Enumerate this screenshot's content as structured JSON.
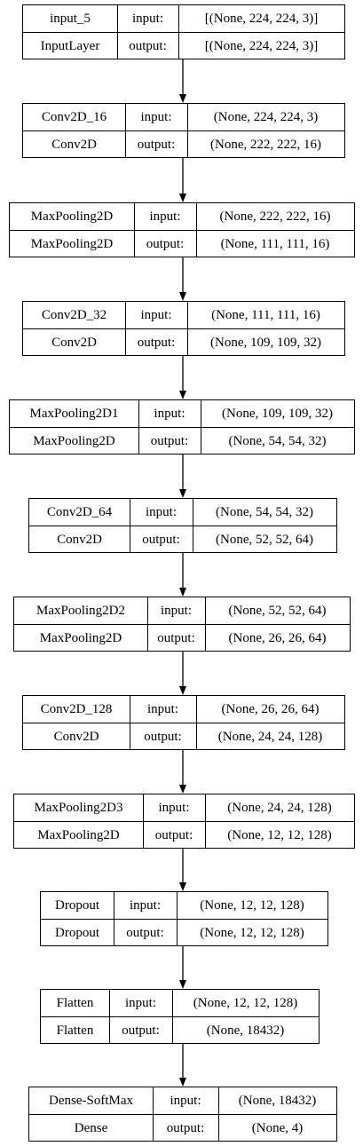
{
  "diagram": {
    "type": "keras-model-plot",
    "layers": [
      {
        "name": "input_5",
        "class": "InputLayer",
        "input_label": "input:",
        "input": "[(None, 224, 224, 3)]",
        "output_label": "output:",
        "output": "[(None, 224, 224, 3)]"
      },
      {
        "name": "Conv2D_16",
        "class": "Conv2D",
        "input_label": "input:",
        "input": "(None, 224, 224, 3)",
        "output_label": "output:",
        "output": "(None, 222, 222, 16)"
      },
      {
        "name": "MaxPooling2D",
        "class": "MaxPooling2D",
        "input_label": "input:",
        "input": "(None, 222, 222, 16)",
        "output_label": "output:",
        "output": "(None, 111, 111, 16)"
      },
      {
        "name": "Conv2D_32",
        "class": "Conv2D",
        "input_label": "input:",
        "input": "(None, 111, 111, 16)",
        "output_label": "output:",
        "output": "(None, 109, 109, 32)"
      },
      {
        "name": "MaxPooling2D1",
        "class": "MaxPooling2D",
        "input_label": "input:",
        "input": "(None, 109, 109, 32)",
        "output_label": "output:",
        "output": "(None, 54, 54, 32)"
      },
      {
        "name": "Conv2D_64",
        "class": "Conv2D",
        "input_label": "input:",
        "input": "(None, 54, 54, 32)",
        "output_label": "output:",
        "output": "(None, 52, 52, 64)"
      },
      {
        "name": "MaxPooling2D2",
        "class": "MaxPooling2D",
        "input_label": "input:",
        "input": "(None, 52, 52, 64)",
        "output_label": "output:",
        "output": "(None, 26, 26, 64)"
      },
      {
        "name": "Conv2D_128",
        "class": "Conv2D",
        "input_label": "input:",
        "input": "(None, 26, 26, 64)",
        "output_label": "output:",
        "output": "(None, 24, 24, 128)"
      },
      {
        "name": "MaxPooling2D3",
        "class": "MaxPooling2D",
        "input_label": "input:",
        "input": "(None, 24, 24, 128)",
        "output_label": "output:",
        "output": "(None, 12, 12, 128)"
      },
      {
        "name": "Dropout",
        "class": "Dropout",
        "input_label": "input:",
        "input": "(None, 12, 12, 128)",
        "output_label": "output:",
        "output": "(None, 12, 12, 128)"
      },
      {
        "name": "Flatten",
        "class": "Flatten",
        "input_label": "input:",
        "input": "(None, 12, 12, 128)",
        "output_label": "output:",
        "output": "(None, 18432)"
      },
      {
        "name": "Dense-SoftMax",
        "class": "Dense",
        "input_label": "input:",
        "input": "(None, 18432)",
        "output_label": "output:",
        "output": "(None, 4)"
      }
    ]
  }
}
